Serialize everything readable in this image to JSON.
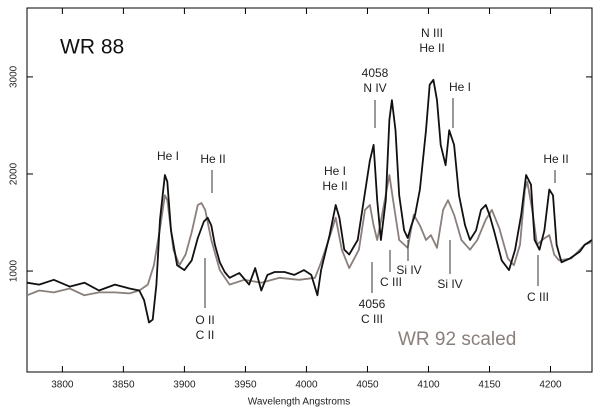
{
  "chart_data": {
    "type": "line",
    "x_label": "Wavelength   Angstroms",
    "xlim": [
      3771,
      4234
    ],
    "ylim": [
      -40,
      3710
    ],
    "xticks": [
      3800,
      3850,
      3900,
      3950,
      4000,
      4050,
      4100,
      4150,
      4200
    ],
    "yticks": [
      1000,
      2000,
      3000
    ],
    "series": [
      {
        "name": "WR 88",
        "color": "#111111",
        "x": [
          3771,
          3781,
          3793,
          3806,
          3818,
          3830,
          3843,
          3855,
          3863,
          3867,
          3871,
          3874,
          3877,
          3880,
          3884,
          3886,
          3889,
          3894,
          3900,
          3906,
          3911,
          3916,
          3919,
          3922,
          3925,
          3929,
          3933,
          3937,
          3945,
          3953,
          3958,
          3963,
          3968,
          3974,
          3982,
          3990,
          3998,
          4004,
          4009,
          4012,
          4019,
          4024,
          4027,
          4031,
          4035,
          4042,
          4047,
          4052,
          4055,
          4058,
          4061,
          4065,
          4068,
          4070,
          4073,
          4076,
          4080,
          4083,
          4086,
          4089,
          4093,
          4098,
          4101,
          4104,
          4107,
          4110,
          4114,
          4117,
          4121,
          4125,
          4130,
          4134,
          4139,
          4143,
          4147,
          4150,
          4154,
          4160,
          4166,
          4171,
          4176,
          4180,
          4184,
          4187,
          4191,
          4195,
          4199,
          4202,
          4205,
          4209,
          4216,
          4224,
          4228,
          4234
        ],
        "values": [
          880,
          860,
          910,
          840,
          880,
          800,
          860,
          820,
          800,
          700,
          470,
          500,
          860,
          1530,
          1990,
          1920,
          1420,
          1060,
          1010,
          1110,
          1340,
          1510,
          1550,
          1470,
          1270,
          1090,
          990,
          930,
          980,
          860,
          1030,
          800,
          960,
          990,
          990,
          960,
          1010,
          960,
          750,
          1010,
          1370,
          1680,
          1550,
          1220,
          1170,
          1320,
          1730,
          2140,
          2300,
          1730,
          1320,
          1730,
          2560,
          2760,
          2450,
          1780,
          1420,
          1340,
          1470,
          1580,
          1840,
          2450,
          2920,
          2970,
          2760,
          2300,
          2090,
          2450,
          2300,
          1780,
          1470,
          1320,
          1420,
          1630,
          1680,
          1580,
          1400,
          1110,
          1010,
          1220,
          1580,
          1990,
          1890,
          1320,
          1220,
          1420,
          1840,
          1780,
          1270,
          1090,
          1130,
          1200,
          1270,
          1320
        ]
      },
      {
        "name": "WR 92 scaled",
        "color": "#8a7f7b",
        "x": [
          3771,
          3781,
          3793,
          3806,
          3818,
          3830,
          3843,
          3855,
          3863,
          3870,
          3875,
          3880,
          3884,
          3886,
          3891,
          3896,
          3901,
          3906,
          3911,
          3914,
          3917,
          3922,
          3929,
          3937,
          3949,
          3963,
          3978,
          3994,
          4007,
          4012,
          4019,
          4024,
          4029,
          4035,
          4043,
          4048,
          4052,
          4055,
          4058,
          4062,
          4068,
          4071,
          4076,
          4083,
          4088,
          4093,
          4098,
          4102,
          4107,
          4112,
          4116,
          4121,
          4127,
          4134,
          4140,
          4147,
          4152,
          4158,
          4165,
          4170,
          4175,
          4179,
          4181,
          4185,
          4189,
          4193,
          4199,
          4203,
          4207,
          4217,
          4228,
          4234
        ],
        "values": [
          750,
          800,
          780,
          820,
          750,
          780,
          780,
          770,
          800,
          860,
          1060,
          1440,
          1780,
          1730,
          1220,
          1060,
          1170,
          1400,
          1680,
          1700,
          1630,
          1320,
          1010,
          860,
          910,
          880,
          930,
          910,
          930,
          1090,
          1350,
          1550,
          1220,
          1030,
          1220,
          1630,
          1680,
          1470,
          1320,
          1580,
          1990,
          1730,
          1320,
          1240,
          1580,
          1470,
          1320,
          1370,
          1240,
          1630,
          1730,
          1580,
          1320,
          1220,
          1320,
          1530,
          1630,
          1440,
          1130,
          1060,
          1270,
          1840,
          1920,
          1630,
          1270,
          1320,
          1370,
          1170,
          1110,
          1130,
          1270,
          1300
        ]
      }
    ],
    "annotations": [
      {
        "lines": [
          "He I"
        ]
      },
      {
        "lines": [
          "He II"
        ]
      },
      {
        "lines": [
          "He I",
          "He II"
        ]
      },
      {
        "lines": [
          "4058",
          "N IV"
        ]
      },
      {
        "lines": [
          "N III",
          "He II"
        ]
      },
      {
        "lines": [
          "He I"
        ]
      },
      {
        "lines": [
          "He II"
        ]
      },
      {
        "lines": [
          "C III"
        ]
      },
      {
        "lines": [
          "Si IV"
        ]
      },
      {
        "lines": [
          "Si IV"
        ]
      },
      {
        "lines": [
          "C III"
        ]
      },
      {
        "lines": [
          "O II",
          "C II"
        ]
      },
      {
        "lines": [
          "4056",
          "C III"
        ]
      }
    ]
  }
}
